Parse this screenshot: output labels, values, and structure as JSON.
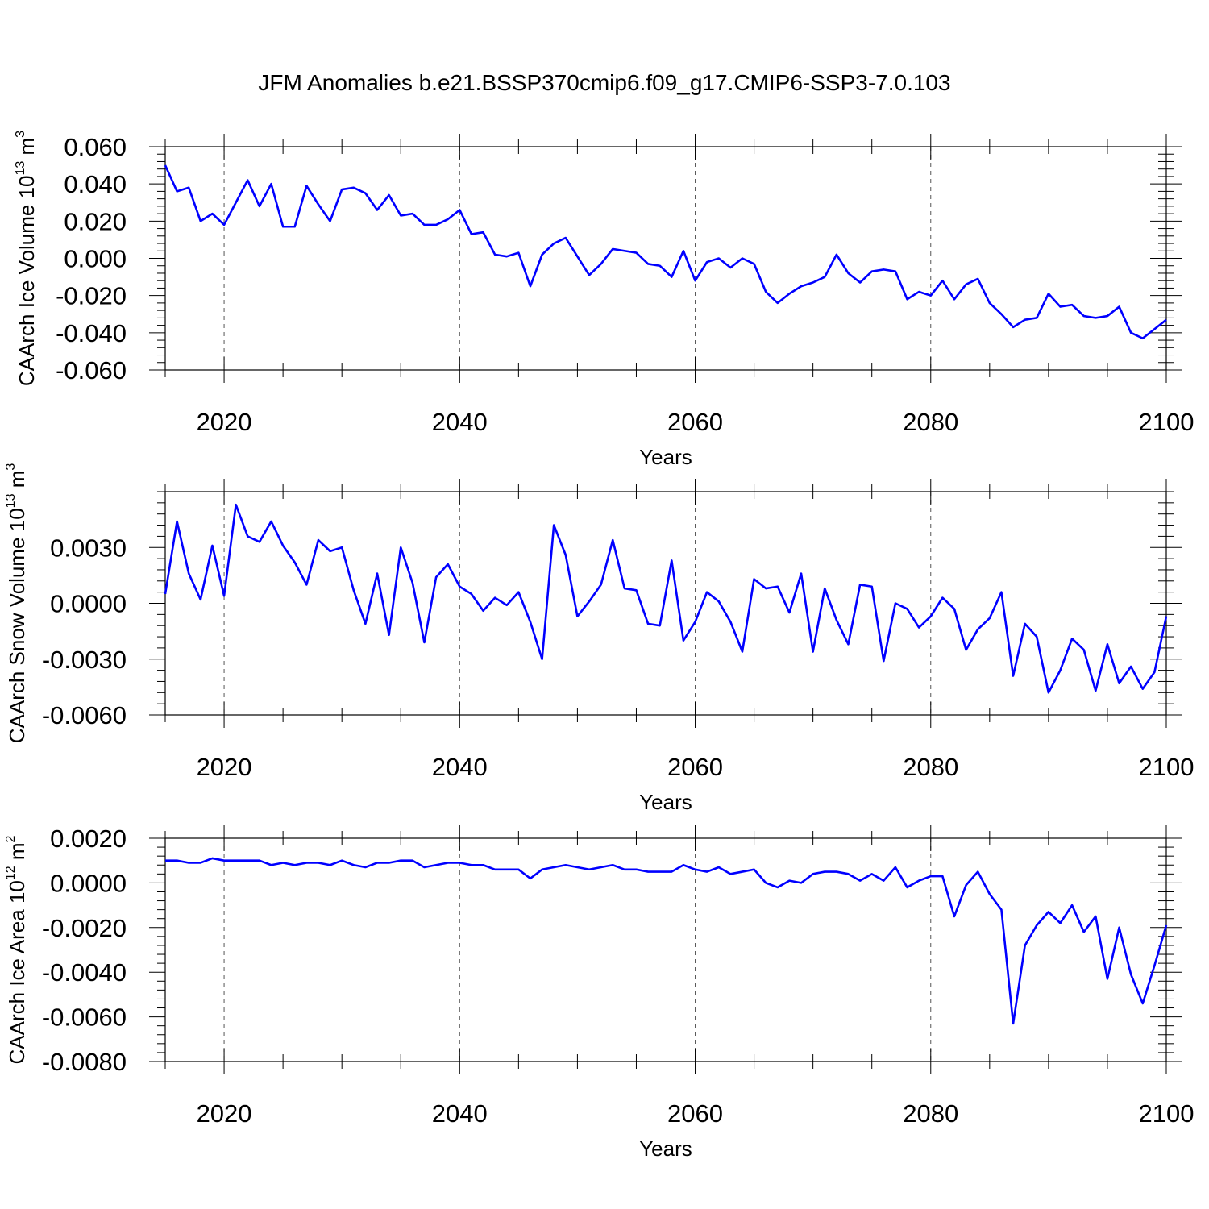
{
  "title": "JFM Anomalies b.e21.BSSP370cmip6.f09_g17.CMIP6-SSP3-7.0.103",
  "chart_data": [
    {
      "type": "line",
      "ylabel_main": "CAArch Ice Volume 10",
      "ylabel_exp": "13",
      "ylabel_unit": " m",
      "ylabel_unit_exp": "3",
      "xlabel": "Years",
      "xlim": [
        2015,
        2100
      ],
      "ylim": [
        -0.06,
        0.06
      ],
      "xticks": [
        2020,
        2040,
        2060,
        2080,
        2100
      ],
      "yticks": [
        0.06,
        0.04,
        0.02,
        0.0,
        -0.02,
        -0.04,
        -0.06
      ],
      "ytick_labels": [
        "0.060",
        "0.040",
        "0.020",
        "0.000",
        "-0.020",
        "-0.040",
        "-0.060"
      ],
      "grid_x": true,
      "color": "#0000ff",
      "x_start": 2015,
      "values": [
        0.05,
        0.036,
        0.038,
        0.02,
        0.024,
        0.018,
        0.03,
        0.042,
        0.028,
        0.04,
        0.017,
        0.017,
        0.039,
        0.029,
        0.02,
        0.037,
        0.038,
        0.035,
        0.026,
        0.034,
        0.023,
        0.024,
        0.018,
        0.018,
        0.021,
        0.026,
        0.013,
        0.014,
        0.002,
        0.001,
        0.003,
        -0.015,
        0.002,
        0.008,
        0.011,
        0.001,
        -0.009,
        -0.003,
        0.005,
        0.004,
        0.003,
        -0.003,
        -0.004,
        -0.01,
        0.004,
        -0.012,
        -0.002,
        0.0,
        -0.005,
        0.0,
        -0.003,
        -0.018,
        -0.024,
        -0.019,
        -0.015,
        -0.013,
        -0.01,
        0.002,
        -0.008,
        -0.013,
        -0.007,
        -0.006,
        -0.007,
        -0.022,
        -0.018,
        -0.02,
        -0.012,
        -0.022,
        -0.014,
        -0.011,
        -0.024,
        -0.03,
        -0.037,
        -0.033,
        -0.032,
        -0.019,
        -0.026,
        -0.025,
        -0.031,
        -0.032,
        -0.031,
        -0.026,
        -0.04,
        -0.043,
        -0.038,
        -0.033
      ]
    },
    {
      "type": "line",
      "ylabel_main": "CAArch Snow Volume 10",
      "ylabel_exp": "13",
      "ylabel_unit": " m",
      "ylabel_unit_exp": "3",
      "xlabel": "Years",
      "xlim": [
        2015,
        2100
      ],
      "ylim": [
        -0.006,
        0.006
      ],
      "xticks": [
        2020,
        2040,
        2060,
        2080,
        2100
      ],
      "yticks": [
        0.003,
        0.0,
        -0.003,
        -0.006
      ],
      "ytick_labels": [
        "0.0030",
        "0.0000",
        "-0.0030",
        "-0.0060"
      ],
      "grid_x": true,
      "color": "#0000ff",
      "x_start": 2015,
      "values": [
        0.0005,
        0.0044,
        0.0016,
        0.0002,
        0.0031,
        0.0004,
        0.0053,
        0.0036,
        0.0033,
        0.0044,
        0.0031,
        0.0022,
        0.001,
        0.0034,
        0.0028,
        0.003,
        0.0007,
        -0.0011,
        0.0016,
        -0.0017,
        0.003,
        0.0011,
        -0.0021,
        0.0014,
        0.0021,
        0.0009,
        0.0005,
        -0.0004,
        0.0003,
        -0.0001,
        0.0006,
        -0.001,
        -0.003,
        0.0042,
        0.0026,
        -0.0007,
        0.0001,
        0.001,
        0.0034,
        0.0008,
        0.0007,
        -0.0011,
        -0.0012,
        0.0023,
        -0.002,
        -0.001,
        0.0006,
        0.0001,
        -0.001,
        -0.0026,
        0.0013,
        0.0008,
        0.0009,
        -0.0005,
        0.0016,
        -0.0026,
        0.0008,
        -0.0009,
        -0.0022,
        0.001,
        0.0009,
        -0.0031,
        0.0,
        -0.0003,
        -0.0013,
        -0.0007,
        0.0003,
        -0.0003,
        -0.0025,
        -0.0014,
        -0.0008,
        0.0006,
        -0.0039,
        -0.0011,
        -0.0018,
        -0.0048,
        -0.0036,
        -0.0019,
        -0.0025,
        -0.0047,
        -0.0022,
        -0.0043,
        -0.0034,
        -0.0046,
        -0.0037,
        -0.0007
      ]
    },
    {
      "type": "line",
      "ylabel_main": "CAArch Ice Area 10",
      "ylabel_exp": "12",
      "ylabel_unit": " m",
      "ylabel_unit_exp": "2",
      "xlabel": "Years",
      "xlim": [
        2015,
        2100
      ],
      "ylim": [
        -0.008,
        0.002
      ],
      "xticks": [
        2020,
        2040,
        2060,
        2080,
        2100
      ],
      "yticks": [
        0.002,
        0.0,
        -0.002,
        -0.004,
        -0.006,
        -0.008
      ],
      "ytick_labels": [
        "0.0020",
        "0.0000",
        "-0.0020",
        "-0.0040",
        "-0.0060",
        "-0.0080"
      ],
      "grid_x": true,
      "color": "#0000ff",
      "x_start": 2015,
      "values": [
        0.001,
        0.001,
        0.0009,
        0.0009,
        0.0011,
        0.001,
        0.001,
        0.001,
        0.001,
        0.0008,
        0.0009,
        0.0008,
        0.0009,
        0.0009,
        0.0008,
        0.001,
        0.0008,
        0.0007,
        0.0009,
        0.0009,
        0.001,
        0.001,
        0.0007,
        0.0008,
        0.0009,
        0.0009,
        0.0008,
        0.0008,
        0.0006,
        0.0006,
        0.0006,
        0.0002,
        0.0006,
        0.0007,
        0.0008,
        0.0007,
        0.0006,
        0.0007,
        0.0008,
        0.0006,
        0.0006,
        0.0005,
        0.0005,
        0.0005,
        0.0008,
        0.0006,
        0.0005,
        0.0007,
        0.0004,
        0.0005,
        0.0006,
        0.0,
        -0.0002,
        0.0001,
        0.0,
        0.0004,
        0.0005,
        0.0005,
        0.0004,
        0.0001,
        0.0004,
        0.0001,
        0.0007,
        -0.0002,
        0.0001,
        0.0003,
        0.0003,
        -0.0015,
        -0.0001,
        0.0005,
        -0.0005,
        -0.0012,
        -0.0063,
        -0.0028,
        -0.0019,
        -0.0013,
        -0.0018,
        -0.001,
        -0.0022,
        -0.0015,
        -0.0043,
        -0.002,
        -0.0041,
        -0.0054,
        -0.0037,
        -0.0019
      ]
    }
  ]
}
